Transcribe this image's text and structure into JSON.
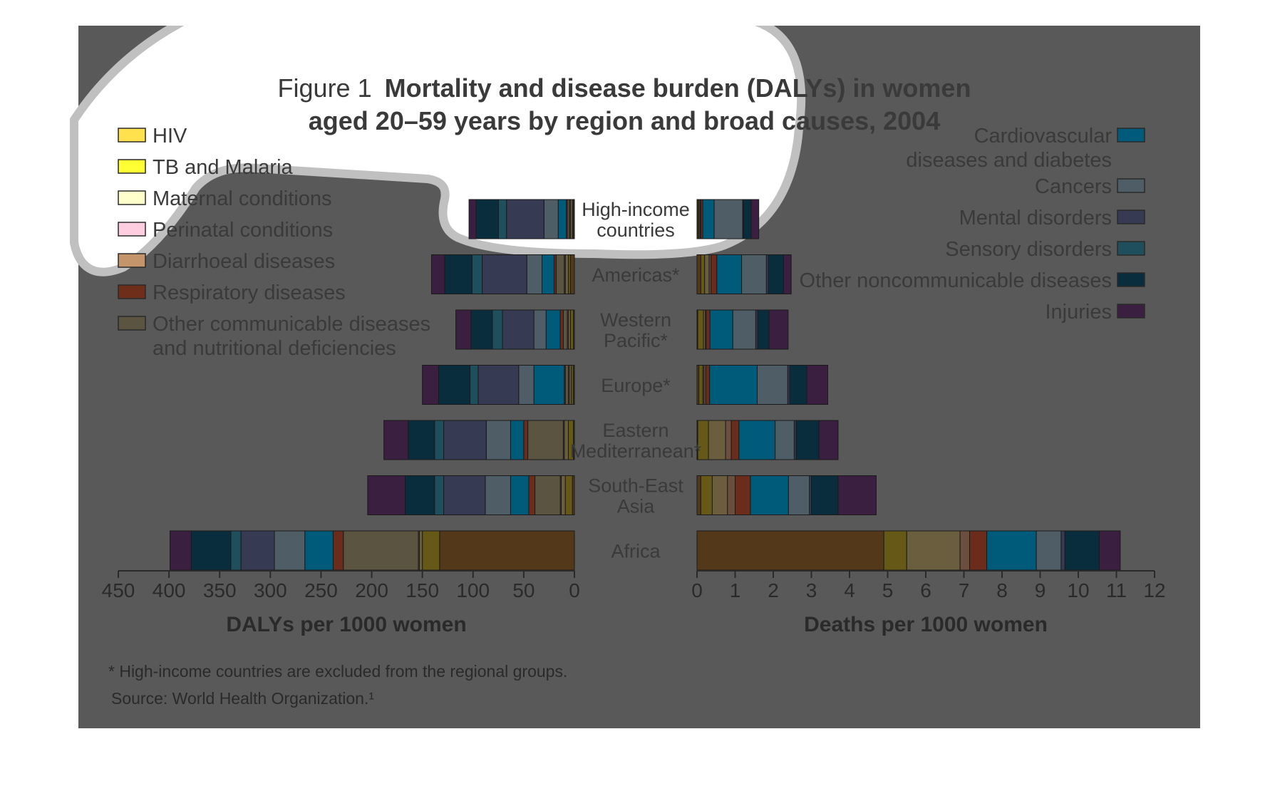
{
  "figure": {
    "title_prefix": "Figure 1",
    "title_line1": "Mortality and disease burden (DALYs) in women",
    "title_line2": "aged 20–59 years by region and broad causes, 2004",
    "footnote": "* High-income countries are excluded from the regional groups.",
    "source": "Source: World Health Organization.¹"
  },
  "colors": {
    "panel_bg": "#595959",
    "white_overlay": "#ffffff",
    "gray_ring": "#c0c0c0",
    "text_dark": "#3a3a3a",
    "axis": "#2a2a2a"
  },
  "chart_data": [
    {
      "type": "bar",
      "orientation": "horizontal",
      "stacked": true,
      "direction": "right-to-left",
      "xlabel": "DALYs per 1000 women",
      "xlim": [
        0,
        450
      ],
      "xticks": [
        0,
        50,
        100,
        150,
        200,
        250,
        300,
        350,
        400,
        450
      ],
      "categories": [
        [
          "High-income",
          "countries"
        ],
        [
          "Americas*"
        ],
        [
          "Western",
          "Pacific*"
        ],
        [
          "Europe*"
        ],
        [
          "Eastern",
          "Mediterranean*"
        ],
        [
          "South-East",
          "Asia"
        ],
        [
          "Africa"
        ]
      ],
      "series": [
        {
          "name": "HIV",
          "values": [
            1,
            4,
            1,
            1,
            1,
            2,
            133
          ]
        },
        {
          "name": "TB and Malaria",
          "values": [
            1,
            2,
            3,
            2,
            5,
            7,
            17
          ]
        },
        {
          "name": "Maternal conditions",
          "values": [
            2,
            3,
            2,
            2,
            4,
            4,
            3
          ]
        },
        {
          "name": "Perinatal conditions",
          "values": [
            0,
            0,
            0,
            0,
            0,
            0,
            0
          ]
        },
        {
          "name": "Diarrhoeal diseases",
          "values": [
            1,
            1,
            1,
            1,
            1,
            1,
            1
          ]
        },
        {
          "name": "Other communicable diseases and nutritional deficiencies",
          "values": [
            2,
            8,
            4,
            3,
            35,
            25,
            74
          ]
        },
        {
          "name": "Respiratory diseases",
          "values": [
            1,
            2,
            3,
            1,
            4,
            6,
            10
          ]
        },
        {
          "name": "Cardiovascular diseases and diabetes",
          "values": [
            8,
            12,
            14,
            30,
            13,
            18,
            28
          ]
        },
        {
          "name": "Cancers",
          "values": [
            14,
            15,
            12,
            15,
            24,
            25,
            30
          ]
        },
        {
          "name": "Mental disorders",
          "values": [
            37,
            44,
            31,
            40,
            42,
            41,
            33
          ]
        },
        {
          "name": "Sensory disorders",
          "values": [
            8,
            10,
            10,
            8,
            9,
            9,
            10
          ]
        },
        {
          "name": "Other noncommunicable diseases",
          "values": [
            22,
            27,
            21,
            31,
            26,
            29,
            39
          ]
        },
        {
          "name": "Injuries",
          "values": [
            7,
            13,
            15,
            16,
            24,
            37,
            21
          ]
        }
      ]
    },
    {
      "type": "bar",
      "orientation": "horizontal",
      "stacked": true,
      "direction": "left-to-right",
      "xlabel": "Deaths per 1000 women",
      "xlim": [
        0,
        12
      ],
      "xticks": [
        0,
        1,
        2,
        3,
        4,
        5,
        6,
        7,
        8,
        9,
        10,
        11,
        12
      ],
      "categories": [
        [
          "High-income",
          "countries"
        ],
        [
          "Americas*"
        ],
        [
          "Western",
          "Pacific*"
        ],
        [
          "Europe*"
        ],
        [
          "Eastern",
          "Mediterranean*"
        ],
        [
          "South-East",
          "Asia"
        ],
        [
          "Africa"
        ]
      ],
      "series": [
        {
          "name": "HIV",
          "values": [
            0.02,
            0.1,
            0.02,
            0.05,
            0.02,
            0.1,
            4.9
          ]
        },
        {
          "name": "TB and Malaria",
          "values": [
            0.03,
            0.1,
            0.15,
            0.1,
            0.28,
            0.3,
            0.6
          ]
        },
        {
          "name": "Maternal conditions",
          "values": [
            0.03,
            0.12,
            0.05,
            0.03,
            0.45,
            0.4,
            1.4
          ]
        },
        {
          "name": "Perinatal conditions",
          "values": [
            0,
            0,
            0,
            0,
            0,
            0,
            0
          ]
        },
        {
          "name": "Diarrhoeal diseases",
          "values": [
            0.02,
            0.05,
            0.02,
            0.05,
            0.15,
            0.2,
            0.25
          ]
        },
        {
          "name": "Other communicable diseases and nutritional deficiencies",
          "values": [
            0,
            0,
            0,
            0,
            0,
            0,
            0
          ]
        },
        {
          "name": "Respiratory diseases",
          "values": [
            0.05,
            0.15,
            0.1,
            0.1,
            0.2,
            0.4,
            0.45
          ]
        },
        {
          "name": "Cardiovascular diseases and diabetes",
          "values": [
            0.3,
            0.65,
            0.6,
            1.25,
            0.95,
            1.0,
            1.3
          ]
        },
        {
          "name": "Cancers",
          "values": [
            0.75,
            0.65,
            0.6,
            0.8,
            0.5,
            0.55,
            0.65
          ]
        },
        {
          "name": "Mental disorders",
          "values": [
            0.02,
            0.05,
            0.05,
            0.05,
            0.05,
            0.05,
            0.1
          ]
        },
        {
          "name": "Sensory disorders",
          "values": [
            0,
            0,
            0,
            0,
            0,
            0,
            0
          ]
        },
        {
          "name": "Other noncommunicable diseases",
          "values": [
            0.2,
            0.4,
            0.3,
            0.45,
            0.6,
            0.7,
            0.9
          ]
        },
        {
          "name": "Injuries",
          "values": [
            0.2,
            0.2,
            0.5,
            0.55,
            0.5,
            1.0,
            0.55
          ]
        }
      ]
    }
  ],
  "legend": {
    "left": [
      {
        "label": [
          "HIV"
        ],
        "color": "#ffe14d"
      },
      {
        "label": [
          "TB and Malaria"
        ],
        "color": "#ffff33"
      },
      {
        "label": [
          "Maternal conditions"
        ],
        "color": "#ffffcc"
      },
      {
        "label": [
          "Perinatal conditions"
        ],
        "color": "#ffcce0"
      },
      {
        "label": [
          "Diarrhoeal diseases"
        ],
        "color": "#c4956a"
      },
      {
        "label": [
          "Respiratory diseases"
        ],
        "color": "#6e2e1a"
      },
      {
        "label": [
          "Other communicable diseases",
          "and nutritional deficiencies"
        ],
        "color": "#5a5440"
      }
    ],
    "right": [
      {
        "label": [
          "Cardiovascular",
          "diseases and diabetes"
        ],
        "color": "#005a7a"
      },
      {
        "label": [
          "Cancers"
        ],
        "color": "#4f5e66"
      },
      {
        "label": [
          "Mental disorders"
        ],
        "color": "#363a52"
      },
      {
        "label": [
          "Sensory disorders"
        ],
        "color": "#1f4e5c"
      },
      {
        "label": [
          "Other noncommunicable diseases"
        ],
        "color": "#0a2d3e"
      },
      {
        "label": [
          "Injuries"
        ],
        "color": "#3a1f40"
      }
    ]
  },
  "series_colors": {
    "HIV": "#54381a",
    "TB and Malaria": "#665918",
    "Maternal conditions": "#6a5e3e",
    "Perinatal conditions": "#6a5a60",
    "Diarrhoeal diseases": "#6b4e3e",
    "Other communicable diseases and nutritional deficiencies": "#5a5440",
    "Respiratory diseases": "#6b2c1c",
    "Cardiovascular diseases and diabetes": "#005a7a",
    "Cancers": "#4f5e66",
    "Mental disorders": "#363a52",
    "Sensory disorders": "#1f4e5c",
    "Other noncommunicable diseases": "#0a2d3e",
    "Injuries": "#3a1f40"
  }
}
